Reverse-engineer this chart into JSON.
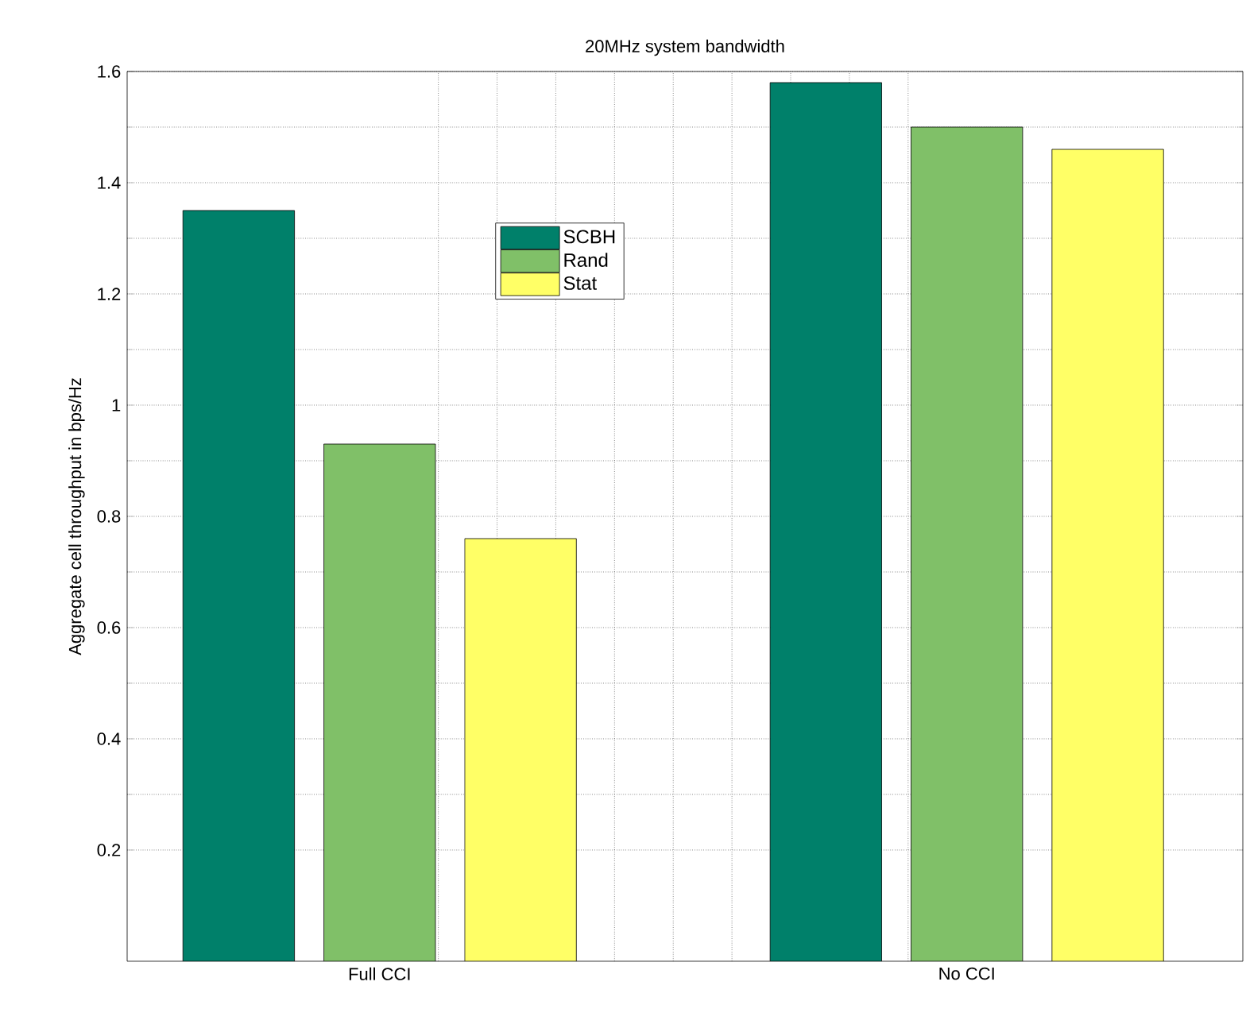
{
  "chart_data": {
    "type": "bar",
    "title": "20MHz system bandwidth",
    "ylabel": "Aggregate cell throughput in bps/Hz",
    "categories": [
      "Full CCI",
      "No CCI"
    ],
    "series": [
      {
        "name": "SCBH",
        "color": "#00806a",
        "values": [
          1.35,
          1.58
        ]
      },
      {
        "name": "Rand",
        "color": "#80c068",
        "values": [
          0.93,
          1.5
        ]
      },
      {
        "name": "Stat",
        "color": "#ffff66",
        "values": [
          0.76,
          1.46
        ]
      }
    ],
    "ylim": [
      0,
      1.6
    ],
    "yticks": [
      0.2,
      0.4,
      0.6,
      0.8,
      1,
      1.2,
      1.4,
      1.6
    ],
    "grid": true,
    "legend": "top"
  }
}
